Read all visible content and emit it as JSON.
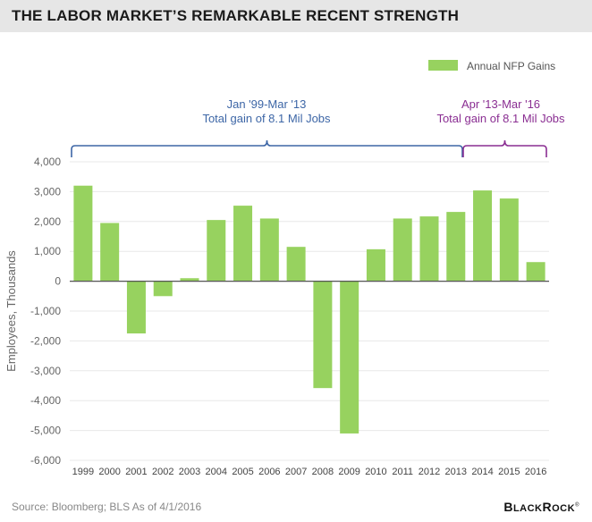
{
  "header": {
    "title": "THE LABOR MARKET’S REMARKABLE RECENT STRENGTH"
  },
  "footer": {
    "source": "Source: Bloomberg; BLS As of 4/1/2016",
    "logo": "BlackRock"
  },
  "colors": {
    "bar": "#97d25f",
    "period1": "#3d66a6",
    "period2": "#8a2e92",
    "axis_text": "#666666",
    "grid": "#e8e8e8",
    "title_bar": "#e6e6e6"
  },
  "chart_data": {
    "type": "bar",
    "categories": [
      "1999",
      "2000",
      "2001",
      "2002",
      "2003",
      "2004",
      "2005",
      "2006",
      "2007",
      "2008",
      "2009",
      "2010",
      "2011",
      "2012",
      "2013",
      "2014",
      "2015",
      "2016"
    ],
    "series": [
      {
        "name": "Annual NFP Gains",
        "values": [
          3200,
          1950,
          -1750,
          -500,
          100,
          2050,
          2530,
          2100,
          1150,
          -3580,
          -5100,
          1070,
          2100,
          2170,
          2320,
          3040,
          2770,
          640
        ]
      }
    ],
    "title": "THE LABOR MARKET’S REMARKABLE RECENT STRENGTH",
    "xlabel": "",
    "ylabel": "Employees, Thousands",
    "ylim": [
      -6000,
      4000
    ],
    "yticks": [
      4000,
      3000,
      2000,
      1000,
      0,
      -1000,
      -2000,
      -3000,
      -4000,
      -5000,
      -6000
    ],
    "ytick_labels": [
      "4,000",
      "3,000",
      "2,000",
      "1,000",
      "0",
      "-1,000",
      "-2,000",
      "-3,000",
      "-4,000",
      "-5,000",
      "-6,000"
    ],
    "grid": true,
    "legend": "top-right",
    "annotations": [
      {
        "line1": "Jan '99-Mar '13",
        "line2": "Total gain of 8.1 Mil Jobs",
        "from": "1999",
        "to": "2013"
      },
      {
        "line1": "Apr '13-Mar '16",
        "line2": "Total gain of 8.1 Mil Jobs",
        "from": "2013",
        "to": "2016"
      }
    ]
  }
}
